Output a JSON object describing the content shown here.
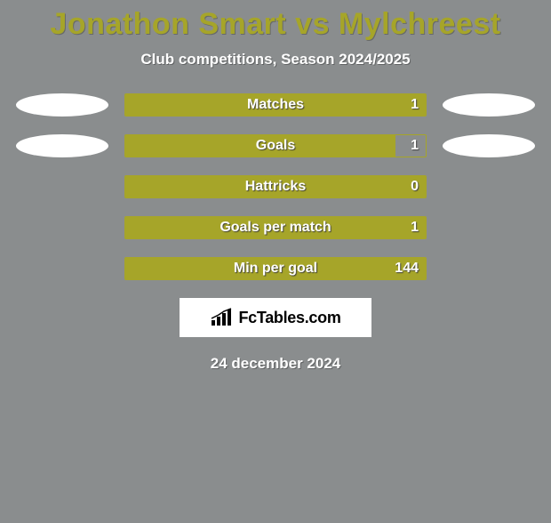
{
  "title": {
    "text": "Jonathon Smart vs Mylchreest",
    "color": "#a6a529",
    "fontsize": 34
  },
  "subtitle": "Club competitions, Season 2024/2025",
  "colors": {
    "background": "#8a8d8e",
    "ellipse_left": "#ffffff",
    "ellipse_right": "#ffffff",
    "bar_border": "#a6a529",
    "bar_fill": "#a6a529",
    "brand_bg": "#ffffff",
    "brand_text": "#000000"
  },
  "rows": [
    {
      "label": "Matches",
      "value": "1",
      "fill_pct": 100,
      "show_ellipses": true
    },
    {
      "label": "Goals",
      "value": "1",
      "fill_pct": 90,
      "show_ellipses": true
    },
    {
      "label": "Hattricks",
      "value": "0",
      "fill_pct": 100,
      "show_ellipses": false
    },
    {
      "label": "Goals per match",
      "value": "1",
      "fill_pct": 100,
      "show_ellipses": false
    },
    {
      "label": "Min per goal",
      "value": "144",
      "fill_pct": 100,
      "show_ellipses": false
    }
  ],
  "brand": {
    "text": "FcTables.com"
  },
  "date": "24 december 2024"
}
